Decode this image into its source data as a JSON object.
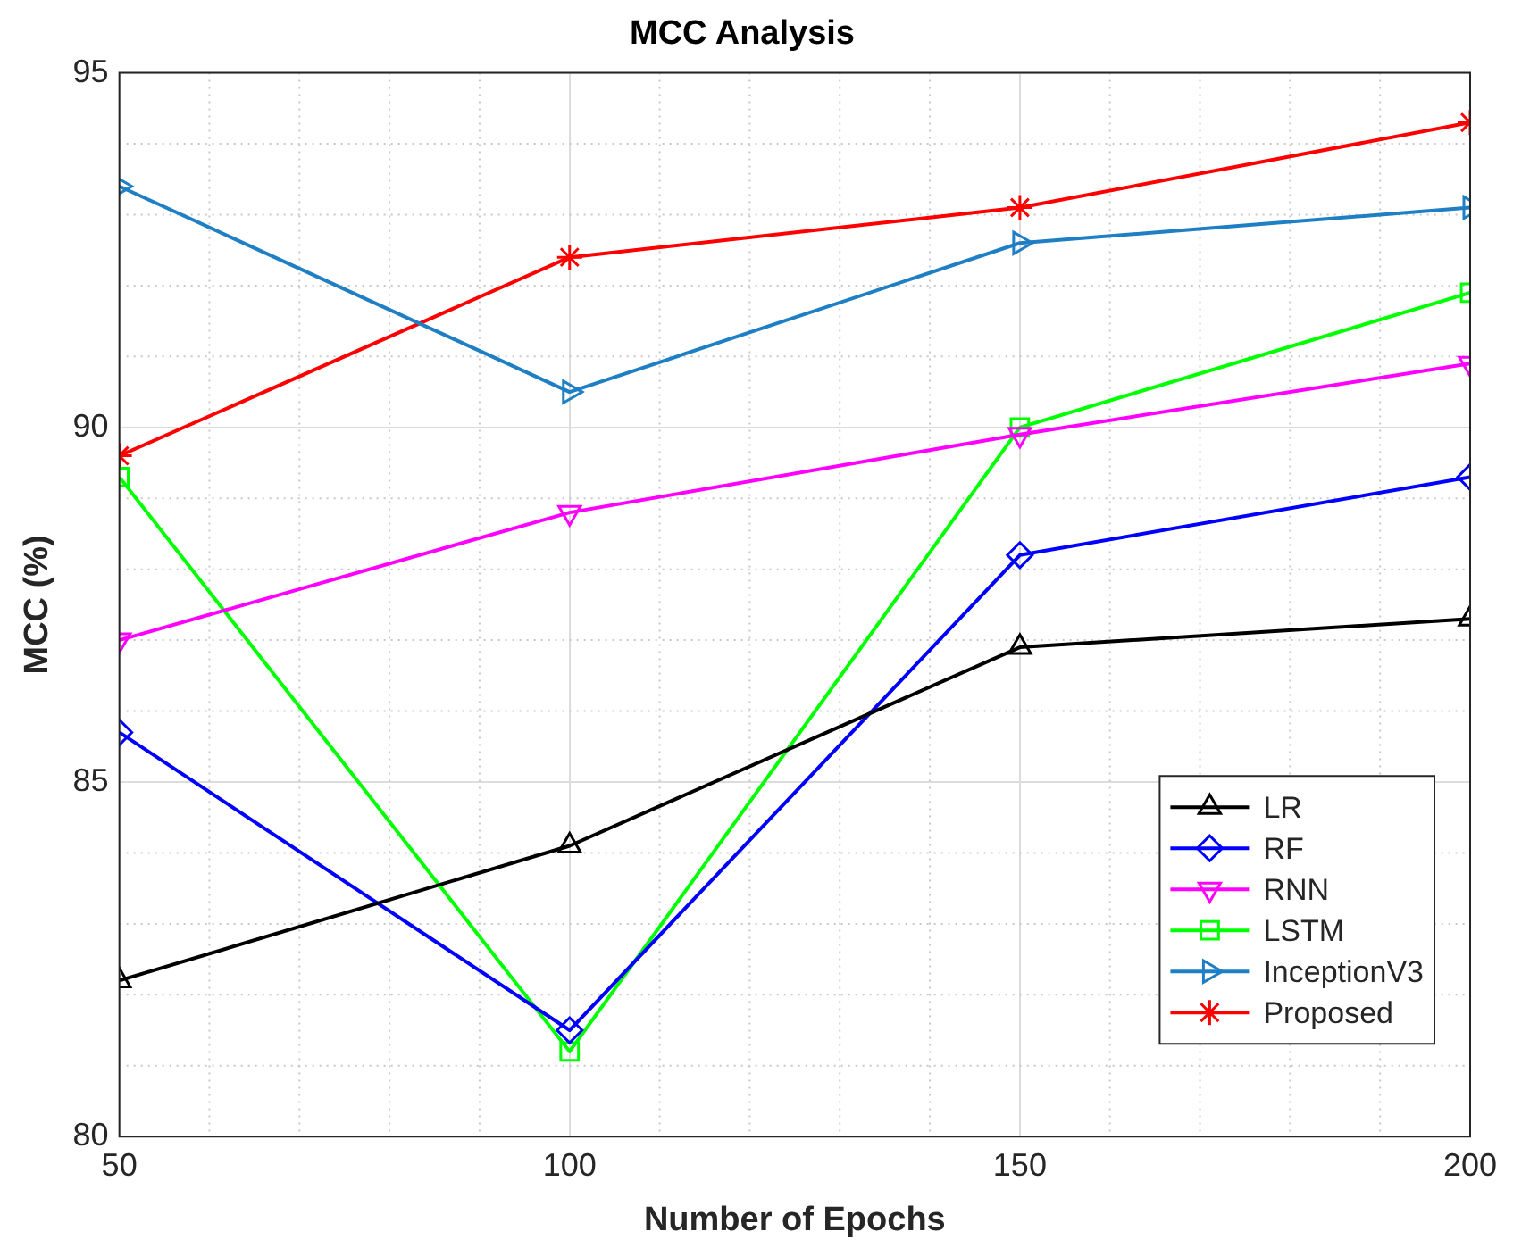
{
  "chart_data": {
    "type": "line",
    "title": "MCC Analysis",
    "xlabel": "Number of Epochs",
    "ylabel": "MCC (%)",
    "x": [
      50,
      100,
      150,
      200
    ],
    "xlim": [
      50,
      200
    ],
    "xticks": [
      50,
      100,
      150,
      200
    ],
    "ylim": [
      80,
      95
    ],
    "yticks": [
      80,
      85,
      90,
      95
    ],
    "grid": true,
    "legend": "bottom right",
    "line_style": "solid",
    "series": [
      {
        "name": "LR",
        "color": "#000000",
        "marker": "triangle",
        "values": [
          82.2,
          84.1,
          86.9,
          87.3
        ]
      },
      {
        "name": "RF",
        "color": "#0000ff",
        "marker": "diamond",
        "values": [
          85.7,
          81.5,
          88.2,
          89.3
        ]
      },
      {
        "name": "RNN",
        "color": "#ff00ff",
        "marker": "triangle-down",
        "values": [
          87.0,
          88.8,
          89.9,
          90.9
        ]
      },
      {
        "name": "LSTM",
        "color": "#00ff00",
        "marker": "square",
        "values": [
          89.3,
          81.2,
          90.0,
          91.9
        ]
      },
      {
        "name": "InceptionV3",
        "color": "#1f7fc4",
        "marker": "triangle-right",
        "values": [
          93.4,
          90.5,
          92.6,
          93.1
        ]
      },
      {
        "name": "Proposed",
        "color": "#ff0000",
        "marker": "cross",
        "values": [
          89.6,
          92.4,
          93.1,
          94.3
        ]
      }
    ]
  }
}
